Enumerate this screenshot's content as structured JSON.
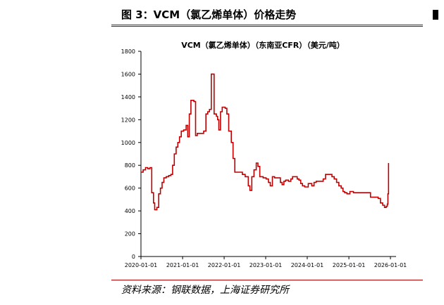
{
  "figure": {
    "title": "图 3：VCM（氯乙烯单体）价格走势",
    "source": "资料来源：钢联数据，上海证券研究所"
  },
  "colors": {
    "accent": "#b00000",
    "series": "#c00000"
  },
  "chart_data": {
    "type": "line",
    "title": "VCM（氯乙烯单体）（东南亚CFR）（美元/吨）",
    "xlabel": "",
    "ylabel": "",
    "ylim": [
      0,
      1800
    ],
    "yticks": [
      0,
      200,
      400,
      600,
      800,
      1000,
      1200,
      1400,
      1600,
      1800
    ],
    "xlim": [
      "2020-01-01",
      "2026-01-01"
    ],
    "xticks": [
      "2020-01-01",
      "2021-01-01",
      "2022-01-01",
      "2023-01-01",
      "2024-01-01",
      "2025-01-01",
      "2026-01-01"
    ],
    "grid": false,
    "legend": "none",
    "series": [
      {
        "points": [
          [
            "2020-01-01",
            740
          ],
          [
            "2020-01-20",
            760
          ],
          [
            "2020-02-10",
            780
          ],
          [
            "2020-03-01",
            770
          ],
          [
            "2020-03-20",
            780
          ],
          [
            "2020-04-05",
            560
          ],
          [
            "2020-04-20",
            470
          ],
          [
            "2020-05-01",
            410
          ],
          [
            "2020-05-20",
            430
          ],
          [
            "2020-06-05",
            550
          ],
          [
            "2020-06-20",
            600
          ],
          [
            "2020-07-05",
            650
          ],
          [
            "2020-07-20",
            690
          ],
          [
            "2020-08-10",
            700
          ],
          [
            "2020-09-01",
            710
          ],
          [
            "2020-09-20",
            720
          ],
          [
            "2020-10-05",
            800
          ],
          [
            "2020-10-20",
            900
          ],
          [
            "2020-11-05",
            960
          ],
          [
            "2020-11-20",
            1000
          ],
          [
            "2020-12-05",
            1050
          ],
          [
            "2020-12-20",
            1100
          ],
          [
            "2021-01-10",
            1110
          ],
          [
            "2021-02-01",
            1150
          ],
          [
            "2021-02-15",
            1050
          ],
          [
            "2021-03-01",
            1250
          ],
          [
            "2021-03-15",
            1370
          ],
          [
            "2021-04-10",
            1360
          ],
          [
            "2021-04-25",
            1060
          ],
          [
            "2021-05-10",
            1080
          ],
          [
            "2021-06-10",
            1080
          ],
          [
            "2021-07-05",
            1100
          ],
          [
            "2021-07-25",
            1250
          ],
          [
            "2021-08-10",
            1270
          ],
          [
            "2021-08-25",
            1290
          ],
          [
            "2021-09-10",
            1600
          ],
          [
            "2021-09-25",
            1600
          ],
          [
            "2021-10-05",
            1250
          ],
          [
            "2021-10-25",
            1230
          ],
          [
            "2021-11-05",
            1200
          ],
          [
            "2021-11-15",
            1110
          ],
          [
            "2021-11-30",
            1270
          ],
          [
            "2021-12-15",
            1310
          ],
          [
            "2022-01-10",
            1300
          ],
          [
            "2022-01-25",
            1250
          ],
          [
            "2022-02-10",
            1100
          ],
          [
            "2022-03-05",
            1000
          ],
          [
            "2022-03-20",
            860
          ],
          [
            "2022-04-05",
            740
          ],
          [
            "2022-05-01",
            740
          ],
          [
            "2022-06-10",
            720
          ],
          [
            "2022-07-05",
            700
          ],
          [
            "2022-08-01",
            620
          ],
          [
            "2022-08-15",
            580
          ],
          [
            "2022-09-01",
            700
          ],
          [
            "2022-09-20",
            760
          ],
          [
            "2022-10-10",
            820
          ],
          [
            "2022-10-25",
            790
          ],
          [
            "2022-11-10",
            700
          ],
          [
            "2022-12-10",
            690
          ],
          [
            "2023-01-05",
            680
          ],
          [
            "2023-01-25",
            650
          ],
          [
            "2023-02-10",
            620
          ],
          [
            "2023-03-01",
            700
          ],
          [
            "2023-03-20",
            690
          ],
          [
            "2023-04-20",
            690
          ],
          [
            "2023-05-10",
            650
          ],
          [
            "2023-05-25",
            630
          ],
          [
            "2023-06-10",
            660
          ],
          [
            "2023-06-25",
            670
          ],
          [
            "2023-07-20",
            660
          ],
          [
            "2023-08-10",
            680
          ],
          [
            "2023-08-25",
            700
          ],
          [
            "2023-09-15",
            700
          ],
          [
            "2023-10-05",
            680
          ],
          [
            "2023-10-20",
            670
          ],
          [
            "2023-11-05",
            640
          ],
          [
            "2023-11-20",
            620
          ],
          [
            "2023-12-10",
            610
          ],
          [
            "2024-01-10",
            640
          ],
          [
            "2024-02-10",
            620
          ],
          [
            "2024-03-01",
            650
          ],
          [
            "2024-03-20",
            660
          ],
          [
            "2024-04-20",
            660
          ],
          [
            "2024-05-20",
            680
          ],
          [
            "2024-06-10",
            720
          ],
          [
            "2024-07-15",
            720
          ],
          [
            "2024-08-05",
            700
          ],
          [
            "2024-08-25",
            680
          ],
          [
            "2024-09-15",
            650
          ],
          [
            "2024-10-05",
            620
          ],
          [
            "2024-10-25",
            600
          ],
          [
            "2024-11-10",
            570
          ],
          [
            "2024-11-25",
            560
          ],
          [
            "2024-12-15",
            550
          ],
          [
            "2025-01-10",
            570
          ],
          [
            "2025-02-10",
            560
          ],
          [
            "2025-03-20",
            560
          ],
          [
            "2025-05-15",
            560
          ],
          [
            "2025-06-20",
            560
          ],
          [
            "2025-07-10",
            520
          ],
          [
            "2025-08-20",
            520
          ],
          [
            "2025-09-15",
            510
          ],
          [
            "2025-10-05",
            470
          ],
          [
            "2025-10-25",
            450
          ],
          [
            "2025-11-10",
            430
          ],
          [
            "2025-11-25",
            440
          ],
          [
            "2025-12-05",
            460
          ],
          [
            "2025-12-10",
            550
          ],
          [
            "2025-12-15",
            820
          ]
        ]
      }
    ]
  }
}
